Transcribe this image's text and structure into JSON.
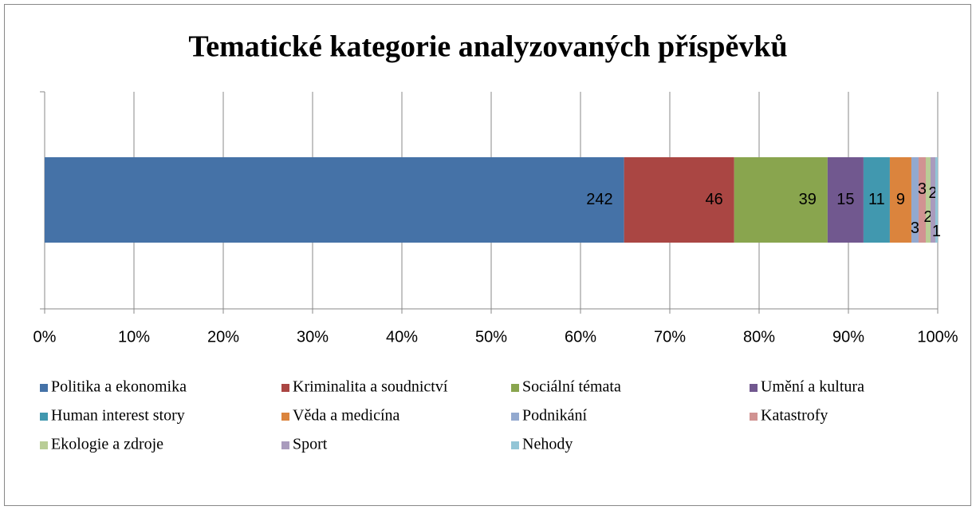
{
  "chart_data": {
    "type": "stacked_bar_100",
    "orientation": "horizontal",
    "title": "Tematické kategorie analyzovaných příspěvků",
    "series": [
      {
        "name": "Politika a ekonomika",
        "color": "#4572a7",
        "values": [
          242
        ]
      },
      {
        "name": "Kriminalita a soudnictví",
        "color": "#aa4643",
        "values": [
          46
        ]
      },
      {
        "name": "Sociální témata",
        "color": "#89a54e",
        "values": [
          39
        ]
      },
      {
        "name": "Umění a kultura",
        "color": "#71588f",
        "values": [
          15
        ]
      },
      {
        "name": "Human interest story",
        "color": "#4198af",
        "values": [
          11
        ]
      },
      {
        "name": "Věda a medicína",
        "color": "#db843d",
        "values": [
          9
        ]
      },
      {
        "name": "Podnikání",
        "color": "#93a9cf",
        "values": [
          3
        ]
      },
      {
        "name": "Katastrofy",
        "color": "#d19392",
        "values": [
          3
        ]
      },
      {
        "name": "Ekologie a zdroje",
        "color": "#b9cd96",
        "values": [
          2
        ]
      },
      {
        "name": "Sport",
        "color": "#a99bbd",
        "values": [
          2
        ]
      },
      {
        "name": "Nehody",
        "color": "#92c5d6",
        "values": [
          1
        ]
      }
    ],
    "xlim": [
      0,
      100
    ],
    "xticks": [
      {
        "value": 0,
        "label": "0%"
      },
      {
        "value": 10,
        "label": "10%"
      },
      {
        "value": 20,
        "label": "20%"
      },
      {
        "value": 30,
        "label": "30%"
      },
      {
        "value": 40,
        "label": "40%"
      },
      {
        "value": 50,
        "label": "50%"
      },
      {
        "value": 60,
        "label": "60%"
      },
      {
        "value": 70,
        "label": "70%"
      },
      {
        "value": 80,
        "label": "80%"
      },
      {
        "value": 90,
        "label": "90%"
      },
      {
        "value": 100,
        "label": "100%"
      }
    ],
    "grid": true,
    "legend": "bottom"
  }
}
